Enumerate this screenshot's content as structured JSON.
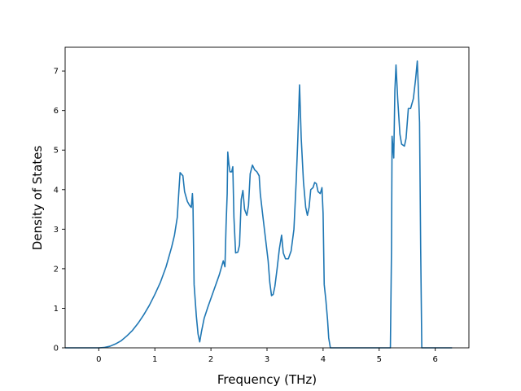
{
  "chart_data": {
    "type": "line",
    "title": "",
    "xlabel": "Frequency (THz)",
    "ylabel": "Density of States",
    "xlim": [
      -0.6,
      6.6
    ],
    "ylim": [
      0,
      7.6
    ],
    "xticks": [
      0,
      1,
      2,
      3,
      4,
      5,
      6
    ],
    "yticks": [
      0,
      1,
      2,
      3,
      4,
      5,
      6,
      7
    ],
    "grid": false,
    "legend": "none",
    "series": [
      {
        "color": "#1f77b4",
        "points": [
          [
            -0.6,
            0
          ],
          [
            0.0,
            0
          ],
          [
            0.1,
            0.01
          ],
          [
            0.2,
            0.04
          ],
          [
            0.3,
            0.1
          ],
          [
            0.4,
            0.18
          ],
          [
            0.5,
            0.3
          ],
          [
            0.6,
            0.44
          ],
          [
            0.7,
            0.62
          ],
          [
            0.8,
            0.83
          ],
          [
            0.9,
            1.07
          ],
          [
            1.0,
            1.35
          ],
          [
            1.1,
            1.66
          ],
          [
            1.2,
            2.05
          ],
          [
            1.3,
            2.55
          ],
          [
            1.35,
            2.85
          ],
          [
            1.4,
            3.3
          ],
          [
            1.43,
            4.0
          ],
          [
            1.45,
            4.43
          ],
          [
            1.5,
            4.35
          ],
          [
            1.53,
            3.95
          ],
          [
            1.58,
            3.7
          ],
          [
            1.62,
            3.6
          ],
          [
            1.65,
            3.55
          ],
          [
            1.67,
            3.9
          ],
          [
            1.68,
            3.6
          ],
          [
            1.7,
            1.6
          ],
          [
            1.74,
            0.8
          ],
          [
            1.77,
            0.35
          ],
          [
            1.8,
            0.15
          ],
          [
            1.83,
            0.4
          ],
          [
            1.88,
            0.75
          ],
          [
            1.95,
            1.05
          ],
          [
            2.05,
            1.45
          ],
          [
            2.15,
            1.85
          ],
          [
            2.22,
            2.2
          ],
          [
            2.25,
            2.05
          ],
          [
            2.27,
            3.1
          ],
          [
            2.29,
            3.9
          ],
          [
            2.3,
            4.95
          ],
          [
            2.32,
            4.65
          ],
          [
            2.34,
            4.45
          ],
          [
            2.37,
            4.45
          ],
          [
            2.39,
            4.58
          ],
          [
            2.41,
            3.3
          ],
          [
            2.44,
            2.4
          ],
          [
            2.48,
            2.42
          ],
          [
            2.51,
            2.6
          ],
          [
            2.54,
            3.75
          ],
          [
            2.57,
            3.98
          ],
          [
            2.6,
            3.5
          ],
          [
            2.64,
            3.35
          ],
          [
            2.67,
            3.6
          ],
          [
            2.7,
            4.4
          ],
          [
            2.74,
            4.62
          ],
          [
            2.78,
            4.5
          ],
          [
            2.82,
            4.45
          ],
          [
            2.86,
            4.35
          ],
          [
            2.88,
            3.9
          ],
          [
            2.92,
            3.4
          ],
          [
            2.97,
            2.8
          ],
          [
            3.02,
            2.2
          ],
          [
            3.05,
            1.65
          ],
          [
            3.08,
            1.32
          ],
          [
            3.11,
            1.35
          ],
          [
            3.14,
            1.55
          ],
          [
            3.18,
            2.0
          ],
          [
            3.22,
            2.5
          ],
          [
            3.26,
            2.85
          ],
          [
            3.29,
            2.4
          ],
          [
            3.33,
            2.25
          ],
          [
            3.38,
            2.25
          ],
          [
            3.43,
            2.45
          ],
          [
            3.48,
            3.0
          ],
          [
            3.52,
            4.2
          ],
          [
            3.55,
            5.3
          ],
          [
            3.58,
            6.65
          ],
          [
            3.61,
            5.3
          ],
          [
            3.65,
            4.2
          ],
          [
            3.69,
            3.55
          ],
          [
            3.72,
            3.35
          ],
          [
            3.75,
            3.55
          ],
          [
            3.78,
            4.0
          ],
          [
            3.82,
            4.05
          ],
          [
            3.85,
            4.18
          ],
          [
            3.88,
            4.15
          ],
          [
            3.91,
            3.95
          ],
          [
            3.95,
            3.9
          ],
          [
            3.98,
            4.05
          ],
          [
            4.0,
            3.4
          ],
          [
            4.02,
            1.6
          ],
          [
            4.05,
            1.2
          ],
          [
            4.08,
            0.7
          ],
          [
            4.1,
            0.25
          ],
          [
            4.13,
            0
          ],
          [
            5.2,
            0
          ],
          [
            5.22,
            2.5
          ],
          [
            5.23,
            5.35
          ],
          [
            5.26,
            4.8
          ],
          [
            5.28,
            6.5
          ],
          [
            5.3,
            7.15
          ],
          [
            5.33,
            6.3
          ],
          [
            5.37,
            5.4
          ],
          [
            5.4,
            5.15
          ],
          [
            5.45,
            5.1
          ],
          [
            5.48,
            5.3
          ],
          [
            5.52,
            6.05
          ],
          [
            5.56,
            6.05
          ],
          [
            5.61,
            6.3
          ],
          [
            5.65,
            6.8
          ],
          [
            5.68,
            7.25
          ],
          [
            5.7,
            6.5
          ],
          [
            5.72,
            5.7
          ],
          [
            5.74,
            2.5
          ],
          [
            5.76,
            0
          ],
          [
            6.3,
            0
          ]
        ]
      }
    ]
  }
}
